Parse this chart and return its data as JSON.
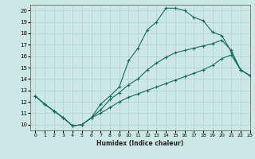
{
  "xlabel": "Humidex (Indice chaleur)",
  "background_color": "#cce8e4",
  "grid_color": "#b0d0cc",
  "line_color": "#1a6b5a",
  "xlim": [
    -0.5,
    23
  ],
  "ylim": [
    9.5,
    20.5
  ],
  "xticks": [
    0,
    1,
    2,
    3,
    4,
    5,
    6,
    7,
    8,
    9,
    10,
    11,
    12,
    13,
    14,
    15,
    16,
    17,
    18,
    19,
    20,
    21,
    22,
    23
  ],
  "yticks": [
    10,
    11,
    12,
    13,
    14,
    15,
    16,
    17,
    18,
    19,
    20
  ],
  "line1_x": [
    0,
    1,
    2,
    3,
    4,
    5,
    6,
    7,
    8,
    9,
    10,
    11,
    12,
    13,
    14,
    15,
    16,
    17,
    18,
    19,
    20,
    21,
    22,
    23
  ],
  "line1_y": [
    12.5,
    11.8,
    11.2,
    10.6,
    9.9,
    10.0,
    10.6,
    11.8,
    12.5,
    13.3,
    15.6,
    16.7,
    18.3,
    19.0,
    20.2,
    20.2,
    20.0,
    19.4,
    19.1,
    18.1,
    17.8,
    16.4,
    14.8,
    14.3
  ],
  "line2_x": [
    0,
    1,
    2,
    3,
    4,
    5,
    6,
    7,
    8,
    9,
    10,
    11,
    12,
    13,
    14,
    15,
    16,
    17,
    18,
    19,
    20,
    21,
    22,
    23
  ],
  "line2_y": [
    12.5,
    11.8,
    11.2,
    10.6,
    9.9,
    10.0,
    10.6,
    11.3,
    12.2,
    12.8,
    13.5,
    14.0,
    14.8,
    15.4,
    15.9,
    16.3,
    16.5,
    16.7,
    16.9,
    17.1,
    17.4,
    16.5,
    14.8,
    14.3
  ],
  "line3_x": [
    0,
    1,
    2,
    3,
    4,
    5,
    6,
    7,
    8,
    9,
    10,
    11,
    12,
    13,
    14,
    15,
    16,
    17,
    18,
    19,
    20,
    21,
    22,
    23
  ],
  "line3_y": [
    12.5,
    11.8,
    11.2,
    10.6,
    9.9,
    10.0,
    10.6,
    11.0,
    11.5,
    12.0,
    12.4,
    12.7,
    13.0,
    13.3,
    13.6,
    13.9,
    14.2,
    14.5,
    14.8,
    15.2,
    15.8,
    16.1,
    14.8,
    14.3
  ],
  "xlabel_fontsize": 5.5,
  "xlabel_fontweight": "bold",
  "tick_fontsize": 4.5,
  "ytick_fontsize": 5.0
}
